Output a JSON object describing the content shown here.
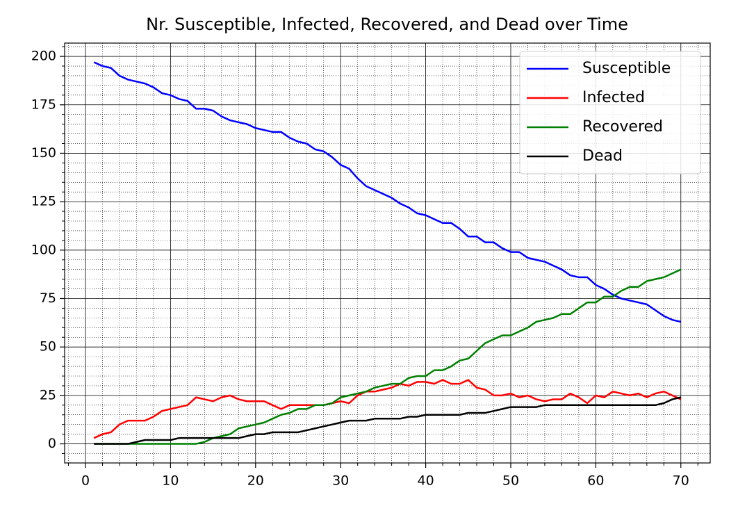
{
  "chart_data": {
    "type": "line",
    "title": "Nr. Susceptible, Infected, Recovered, and Dead over Time",
    "x": [
      1,
      2,
      3,
      4,
      5,
      6,
      7,
      8,
      9,
      10,
      11,
      12,
      13,
      14,
      15,
      16,
      17,
      18,
      19,
      20,
      21,
      22,
      23,
      24,
      25,
      26,
      27,
      28,
      29,
      30,
      31,
      32,
      33,
      34,
      35,
      36,
      37,
      38,
      39,
      40,
      41,
      42,
      43,
      44,
      45,
      46,
      47,
      48,
      49,
      50,
      51,
      52,
      53,
      54,
      55,
      56,
      57,
      58,
      59,
      60,
      61,
      62,
      63,
      64,
      65,
      66,
      67,
      68,
      69,
      70
    ],
    "series": [
      {
        "name": "Susceptible",
        "color": "#0000ff",
        "values": [
          197,
          195,
          194,
          190,
          188,
          187,
          186,
          184,
          181,
          180,
          178,
          177,
          173,
          173,
          172,
          169,
          167,
          166,
          165,
          163,
          162,
          161,
          161,
          158,
          156,
          155,
          152,
          151,
          148,
          144,
          142,
          137,
          133,
          131,
          129,
          127,
          124,
          122,
          119,
          118,
          116,
          114,
          114,
          111,
          107,
          107,
          104,
          104,
          101,
          99,
          99,
          96,
          95,
          94,
          92,
          90,
          87,
          86,
          86,
          82,
          80,
          77,
          75,
          74,
          73,
          72,
          69,
          66,
          64,
          63
        ]
      },
      {
        "name": "Infected",
        "color": "#ff0000",
        "values": [
          3,
          5,
          6,
          10,
          12,
          12,
          12,
          14,
          17,
          18,
          19,
          20,
          24,
          23,
          22,
          24,
          25,
          23,
          22,
          22,
          22,
          20,
          18,
          20,
          20,
          20,
          20,
          20,
          21,
          22,
          21,
          25,
          27,
          27,
          28,
          29,
          31,
          30,
          32,
          32,
          31,
          33,
          31,
          31,
          33,
          29,
          28,
          25,
          25,
          26,
          24,
          25,
          23,
          22,
          23,
          23,
          26,
          24,
          21,
          25,
          24,
          27,
          26,
          25,
          26,
          24,
          26,
          27,
          25,
          23
        ]
      },
      {
        "name": "Recovered",
        "color": "#008000",
        "values": [
          0,
          0,
          0,
          0,
          0,
          0,
          0,
          0,
          0,
          0,
          0,
          0,
          0,
          1,
          3,
          4,
          5,
          8,
          9,
          10,
          11,
          13,
          15,
          16,
          18,
          18,
          20,
          20,
          21,
          24,
          25,
          26,
          27,
          29,
          30,
          31,
          31,
          34,
          35,
          35,
          38,
          38,
          40,
          43,
          44,
          48,
          52,
          54,
          56,
          56,
          58,
          60,
          63,
          64,
          65,
          67,
          67,
          70,
          73,
          73,
          76,
          76,
          79,
          81,
          81,
          84,
          85,
          86,
          88,
          90
        ]
      },
      {
        "name": "Dead",
        "color": "#000000",
        "values": [
          0,
          0,
          0,
          0,
          0,
          1,
          2,
          2,
          2,
          2,
          3,
          3,
          3,
          3,
          3,
          3,
          3,
          3,
          4,
          5,
          5,
          6,
          6,
          6,
          6,
          7,
          8,
          9,
          10,
          11,
          12,
          12,
          12,
          13,
          13,
          13,
          13,
          14,
          14,
          15,
          15,
          15,
          15,
          15,
          16,
          16,
          16,
          17,
          18,
          19,
          19,
          19,
          19,
          20,
          20,
          20,
          20,
          20,
          20,
          20,
          20,
          20,
          20,
          20,
          20,
          20,
          20,
          21,
          23,
          24
        ]
      }
    ],
    "xlim": [
      -2.45,
      73.45
    ],
    "ylim": [
      -9.85,
      206.85
    ],
    "xticks": [
      0,
      10,
      20,
      30,
      40,
      50,
      60,
      70
    ],
    "yticks": [
      0,
      25,
      50,
      75,
      100,
      125,
      150,
      175,
      200
    ],
    "xminorticks": [
      -2,
      2,
      4,
      6,
      8,
      12,
      14,
      16,
      18,
      22,
      24,
      26,
      28,
      32,
      34,
      36,
      38,
      42,
      44,
      46,
      48,
      52,
      54,
      56,
      58,
      62,
      64,
      66,
      68,
      72
    ],
    "yminorticks": [
      -5,
      5,
      10,
      15,
      20,
      30,
      35,
      40,
      45,
      55,
      60,
      65,
      70,
      80,
      85,
      90,
      95,
      105,
      110,
      115,
      120,
      130,
      135,
      140,
      145,
      155,
      160,
      165,
      170,
      180,
      185,
      190,
      195,
      205
    ],
    "grid": true,
    "minor_grid": true,
    "legend": "upper right"
  }
}
